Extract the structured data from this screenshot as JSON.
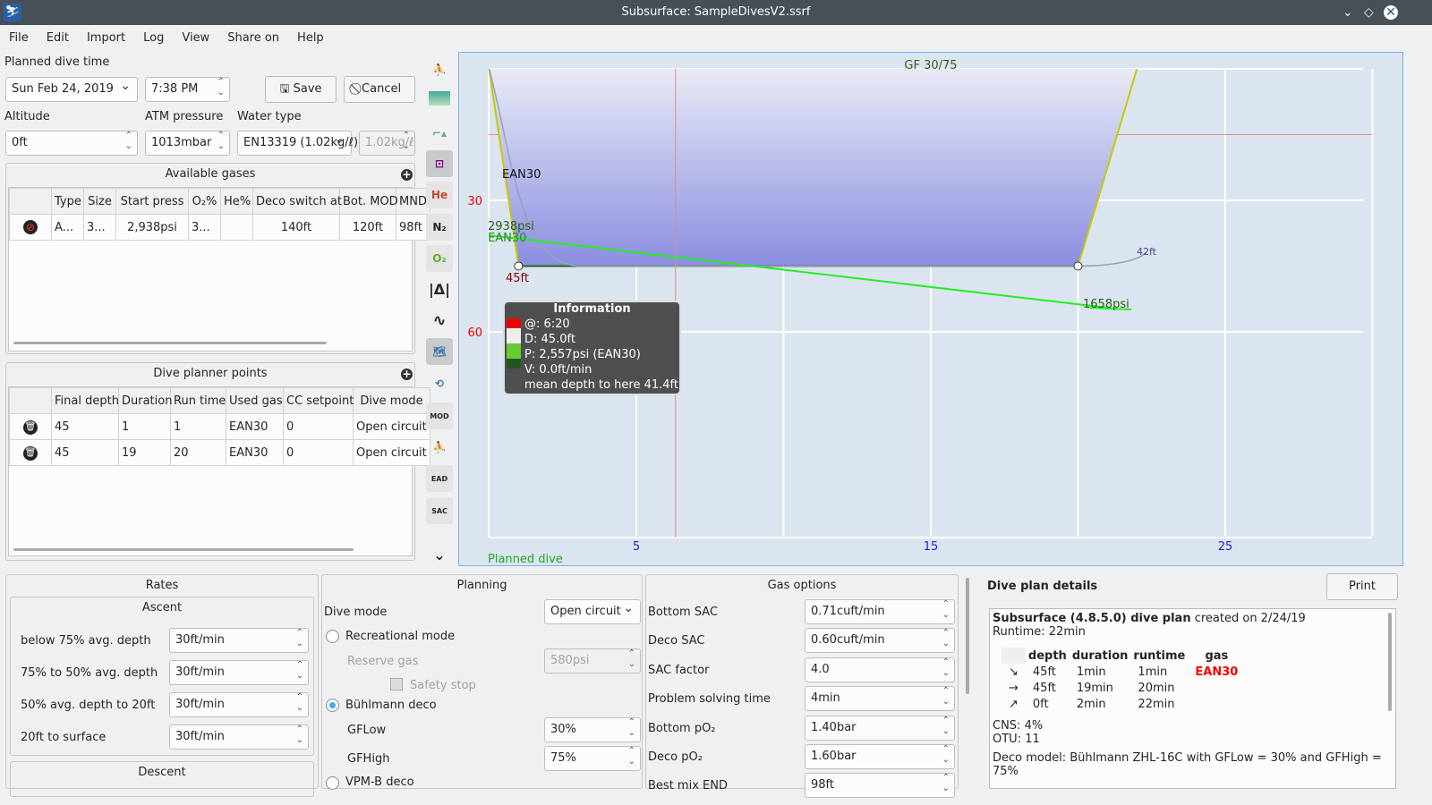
{
  "window": {
    "title": "Subsurface: SampleDivesV2.ssrf"
  },
  "menu": [
    "File",
    "Edit",
    "Import",
    "Log",
    "View",
    "Share on",
    "Help"
  ],
  "planner": {
    "planned_dive_time_label": "Planned dive time",
    "date": "Sun Feb 24, 2019",
    "time": "7:38 PM",
    "save": "Save",
    "cancel": "Cancel",
    "altitude_label": "Altitude",
    "altitude": "0ft",
    "atm_label": "ATM pressure",
    "atm": "1013mbar",
    "water_label": "Water type",
    "water": "EN13319 (1.02kg/ℓ)",
    "water_density": "1.02kg/ℓ"
  },
  "gases": {
    "title": "Available gases",
    "headers": [
      "",
      "Type",
      "Size",
      "Start press",
      "O₂%",
      "He%",
      "Deco switch at",
      "Bot. MOD",
      "MND"
    ],
    "rows": [
      [
        "",
        "A...",
        "3...",
        "2,938psi",
        "3...",
        "",
        "140ft",
        "120ft",
        "98ft"
      ]
    ]
  },
  "points": {
    "title": "Dive planner points",
    "headers": [
      "",
      "Final depth",
      "Duration",
      "Run time",
      "Used gas",
      "CC setpoint",
      "Dive mode"
    ],
    "rows": [
      [
        "",
        "45",
        "1",
        "1",
        "EAN30",
        "0",
        "Open circuit"
      ],
      [
        "",
        "45",
        "19",
        "20",
        "EAN30",
        "0",
        "Open circuit"
      ]
    ]
  },
  "toolbar": [
    "calculated-ceiling",
    "tissue-heatmap",
    "3m-increments",
    "deco-planner",
    "he-pressure",
    "n2-pressure",
    "o2-pressure",
    "ruler",
    "mean-depth",
    "map",
    "rescale",
    "mod",
    "ndl-tts",
    "ead",
    "sac",
    "more"
  ],
  "chart": {
    "gf_label": "GF 30/75",
    "x_ticks": [
      "5",
      "15",
      "25"
    ],
    "y_ticks": [
      "30",
      "60"
    ],
    "footer": "Planned dive",
    "gas_label": "EAN30",
    "start_pressure": "2938psi",
    "start_gas": "EAN30",
    "depth_label": "45ft",
    "end_pressure": "1658psi",
    "tissue_label": "42ft",
    "colors": {
      "profile_fill": "#8a8ee0",
      "pressure": "#22ee22",
      "ascent": "#c8c800",
      "cursor": "#e88888"
    },
    "profile": [
      [
        0,
        0
      ],
      [
        1,
        45
      ],
      [
        20,
        45
      ],
      [
        22,
        0
      ]
    ],
    "pressure": [
      [
        0,
        2938
      ],
      [
        21,
        1658
      ]
    ],
    "cursor_time_min": 6.33,
    "ceiling_ft": 15,
    "info": {
      "title": "Information",
      "lines": [
        "@: 6:20",
        "D: 45.0ft",
        "P: 2,557psi (EAN30)",
        "V: 0.0ft/min",
        "mean depth to here 41.4ft"
      ]
    }
  },
  "rates": {
    "title": "Rates",
    "ascent_title": "Ascent",
    "descent_title": "Descent",
    "rows": [
      {
        "label": "below 75% avg. depth",
        "value": "30ft/min"
      },
      {
        "label": "75% to 50% avg. depth",
        "value": "30ft/min"
      },
      {
        "label": "50% avg. depth to 20ft",
        "value": "30ft/min"
      },
      {
        "label": "20ft to surface",
        "value": "30ft/min"
      }
    ]
  },
  "planning": {
    "title": "Planning",
    "dive_mode_label": "Dive mode",
    "dive_mode": "Open circuit",
    "recreational": "Recreational mode",
    "reserve_label": "Reserve gas",
    "reserve": "580psi",
    "safety": "Safety stop",
    "buhlmann": "Bühlmann deco",
    "gflow_label": "GFLow",
    "gflow": "30%",
    "gfhigh_label": "GFHigh",
    "gfhigh": "75%",
    "vpm": "VPM-B deco"
  },
  "gasopts": {
    "title": "Gas options",
    "rows": [
      {
        "label": "Bottom SAC",
        "value": "0.71cuft/min"
      },
      {
        "label": "Deco SAC",
        "value": "0.60cuft/min"
      },
      {
        "label": "SAC factor",
        "value": "4.0"
      },
      {
        "label": "Problem solving time",
        "value": "4min"
      },
      {
        "label": "Bottom pO₂",
        "value": "1.40bar"
      },
      {
        "label": "Deco pO₂",
        "value": "1.60bar"
      },
      {
        "label": "Best mix END",
        "value": "98ft"
      }
    ]
  },
  "details": {
    "title": "Dive plan details",
    "print": "Print",
    "heading_bold": "Subsurface (4.8.5.0) dive plan",
    "heading_rest": " created on 2/24/19",
    "runtime": "Runtime: 22min",
    "headers": [
      "",
      "depth",
      "duration",
      "runtime",
      "gas"
    ],
    "rows": [
      [
        "↘",
        "45ft",
        "1min",
        "1min",
        "EAN30"
      ],
      [
        "→",
        "45ft",
        "19min",
        "20min",
        ""
      ],
      [
        "↗",
        "0ft",
        "2min",
        "22min",
        ""
      ]
    ],
    "cns": "CNS: 4%",
    "otu": "OTU: 11",
    "deco_model": "Deco model: Bühlmann ZHL-16C with GFLow = 30% and GFHigh = 75%",
    "gas_color": "#ff0000"
  }
}
